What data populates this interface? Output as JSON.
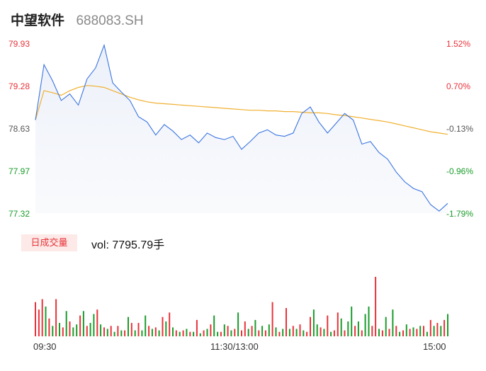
{
  "header": {
    "name": "中望软件",
    "code": "688083.SH"
  },
  "price_axis": [
    "79.93",
    "79.28",
    "78.63",
    "77.97",
    "77.32"
  ],
  "pct_axis": [
    "1.52%",
    "0.70%",
    "-0.13%",
    "-0.96%",
    "-1.79%"
  ],
  "time_axis": [
    "09:30",
    "11:30/13:00",
    "15:00"
  ],
  "volume_panel": {
    "badge": "日成交量",
    "vol_text": "vol: 7795.79手"
  },
  "colors": {
    "price_line": "#3a74e0",
    "avg_line": "#f0b030",
    "up": "#e8333a",
    "down": "#1a9c2b"
  },
  "chart_data": [
    {
      "type": "line",
      "title": "",
      "ylim": [
        77.32,
        79.93
      ],
      "x": [
        0,
        5,
        10,
        15,
        20,
        25,
        30,
        35,
        40,
        45,
        50,
        55,
        60,
        65,
        70,
        75,
        80,
        85,
        90,
        95,
        100,
        105,
        110,
        115,
        120,
        125,
        130,
        135,
        140,
        145,
        150,
        155,
        160,
        165,
        170,
        175,
        180,
        185,
        190,
        195,
        200,
        205,
        210,
        215,
        220,
        225,
        230,
        235,
        240
      ],
      "series": [
        {
          "name": "",
          "values": [
            78.75,
            79.6,
            79.35,
            79.05,
            79.15,
            78.98,
            79.38,
            79.55,
            79.9,
            79.32,
            79.18,
            79.05,
            78.8,
            78.72,
            78.52,
            78.68,
            78.58,
            78.45,
            78.52,
            78.4,
            78.55,
            78.48,
            78.45,
            78.5,
            78.3,
            78.42,
            78.55,
            78.6,
            78.52,
            78.5,
            78.55,
            78.85,
            78.95,
            78.72,
            78.55,
            78.7,
            78.85,
            78.75,
            78.38,
            78.42,
            78.25,
            78.15,
            77.95,
            77.8,
            77.7,
            77.65,
            77.45,
            77.35,
            77.47
          ]
        },
        {
          "name": "",
          "values": [
            78.75,
            79.2,
            79.17,
            79.13,
            79.2,
            79.25,
            79.28,
            79.27,
            79.25,
            79.2,
            79.15,
            79.1,
            79.06,
            79.03,
            79.01,
            79.0,
            78.99,
            78.98,
            78.97,
            78.96,
            78.95,
            78.94,
            78.93,
            78.92,
            78.91,
            78.9,
            78.9,
            78.89,
            78.89,
            78.88,
            78.88,
            78.87,
            78.86,
            78.86,
            78.85,
            78.83,
            78.82,
            78.8,
            78.78,
            78.76,
            78.74,
            78.72,
            78.69,
            78.66,
            78.63,
            78.6,
            78.57,
            78.55,
            78.53
          ]
        }
      ]
    },
    {
      "type": "bar",
      "title": "",
      "ylim": [
        0,
        5000
      ],
      "x": [
        0,
        2,
        4,
        6,
        8,
        10,
        12,
        14,
        16,
        18,
        20,
        22,
        24,
        26,
        28,
        30,
        32,
        34,
        36,
        38,
        40,
        42,
        44,
        46,
        48,
        50,
        52,
        54,
        56,
        58,
        60,
        62,
        64,
        66,
        68,
        70,
        72,
        74,
        76,
        78,
        80,
        82,
        84,
        86,
        88,
        90,
        92,
        94,
        96,
        98,
        100,
        102,
        104,
        106,
        108,
        110,
        112,
        114,
        116,
        118,
        120,
        122,
        124,
        126,
        128,
        130,
        132,
        134,
        136,
        138,
        140,
        142,
        144,
        146,
        148,
        150,
        152,
        154,
        156,
        158,
        160,
        162,
        164,
        166,
        168,
        170,
        172,
        174,
        176,
        178,
        180,
        182,
        184,
        186,
        188,
        190,
        192,
        194,
        196,
        198,
        200,
        202,
        204,
        206,
        208,
        210,
        212,
        214,
        216,
        218,
        220,
        222,
        224,
        226,
        228,
        230,
        232,
        234,
        236,
        238,
        240
      ],
      "values": [
        2300,
        1800,
        2500,
        2000,
        1200,
        700,
        2500,
        900,
        600,
        1700,
        1000,
        600,
        800,
        1400,
        1700,
        700,
        900,
        1500,
        1800,
        800,
        600,
        500,
        700,
        300,
        700,
        400,
        400,
        1300,
        900,
        400,
        900,
        400,
        1400,
        700,
        500,
        600,
        400,
        1300,
        1000,
        1600,
        600,
        400,
        300,
        400,
        500,
        300,
        300,
        1100,
        200,
        400,
        500,
        800,
        1400,
        300,
        300,
        800,
        700,
        400,
        500,
        1600,
        400,
        1000,
        500,
        700,
        1100,
        400,
        700,
        400,
        800,
        2300,
        600,
        300,
        500,
        1900,
        500,
        700,
        500,
        800,
        400,
        300,
        1300,
        1800,
        800,
        600,
        500,
        1400,
        300,
        400,
        1600,
        1200,
        400,
        1000,
        2000,
        700,
        1000,
        400,
        1500,
        2000,
        700,
        4000,
        500,
        400,
        1300,
        500,
        1800,
        700,
        300,
        400,
        800,
        500,
        600,
        500,
        700,
        700,
        300,
        1100,
        700,
        900,
        700,
        1100,
        1500
      ],
      "colors": [
        "r",
        "r",
        "r",
        "g",
        "r",
        "g",
        "r",
        "g",
        "r",
        "g",
        "r",
        "g",
        "g",
        "r",
        "g",
        "r",
        "g",
        "g",
        "r",
        "g",
        "r",
        "g",
        "r",
        "g",
        "r",
        "g",
        "r",
        "g",
        "r",
        "g",
        "r",
        "g",
        "g",
        "r",
        "g",
        "r",
        "g",
        "r",
        "g",
        "r",
        "g",
        "r",
        "g",
        "r",
        "g",
        "r",
        "g",
        "r",
        "g",
        "r",
        "g",
        "r",
        "g",
        "g",
        "r",
        "g",
        "r",
        "g",
        "r",
        "g",
        "r",
        "r",
        "g",
        "r",
        "g",
        "r",
        "g",
        "r",
        "g",
        "r",
        "g",
        "r",
        "g",
        "r",
        "g",
        "r",
        "g",
        "r",
        "g",
        "r",
        "r",
        "g",
        "g",
        "r",
        "g",
        "r",
        "g",
        "r",
        "r",
        "g",
        "r",
        "g",
        "g",
        "r",
        "g",
        "r",
        "g",
        "g",
        "r",
        "r",
        "g",
        "r",
        "g",
        "r",
        "g",
        "r",
        "g",
        "r",
        "g",
        "r",
        "g",
        "r",
        "g",
        "r",
        "g",
        "r",
        "g",
        "r",
        "g",
        "r",
        "g"
      ]
    }
  ]
}
